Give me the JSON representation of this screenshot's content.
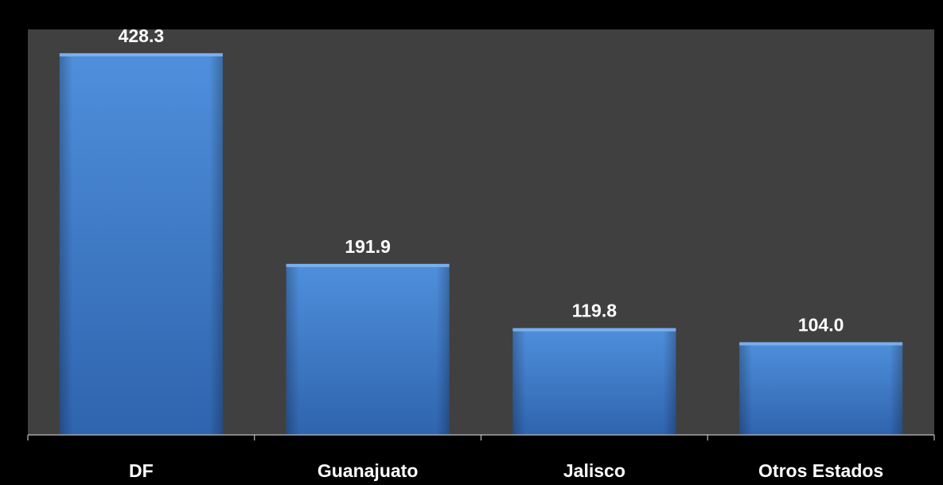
{
  "chart_data": {
    "type": "bar",
    "categories": [
      "DF",
      "Guanajuato",
      "Jalisco",
      "Otros Estados"
    ],
    "values": [
      428.3,
      191.9,
      119.8,
      104.0
    ],
    "value_labels": [
      "428.3",
      "191.9",
      "119.8",
      "104.0"
    ],
    "title": "",
    "xlabel": "",
    "ylabel": "",
    "ylim": [
      0,
      455
    ],
    "grid": false,
    "legend": "none"
  },
  "colors": {
    "page_background": "#000000",
    "plot_background": "#404040",
    "bar_fill": "#3c78c8",
    "bar_highlight": "#5b9be0",
    "text": "#ffffff",
    "axis": "#bfbfbf"
  }
}
